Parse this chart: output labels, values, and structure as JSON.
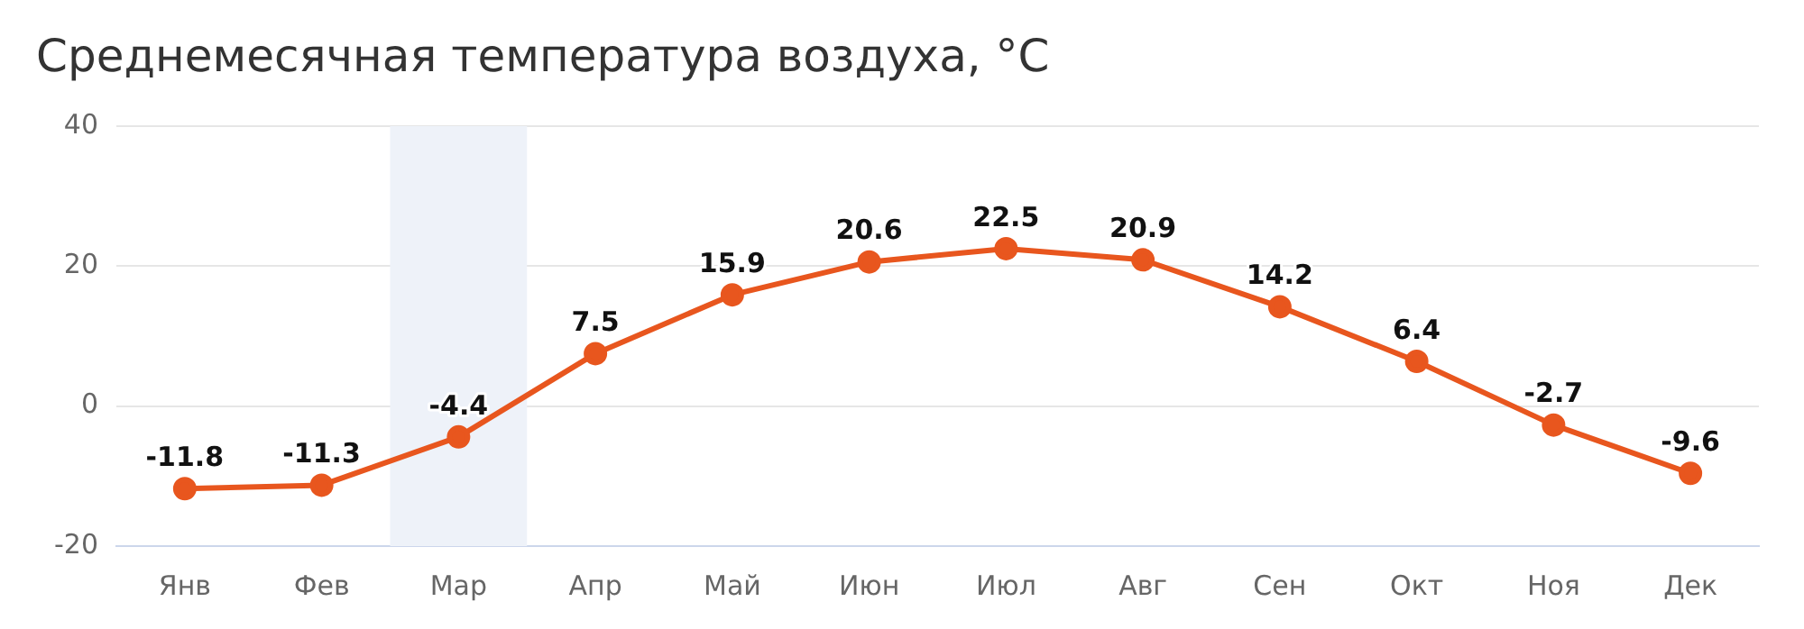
{
  "chart_data": {
    "type": "line",
    "title": "Среднемесячная температура воздуха, °C",
    "categories": [
      "Янв",
      "Фев",
      "Мар",
      "Апр",
      "Май",
      "Июн",
      "Июл",
      "Авг",
      "Сен",
      "Окт",
      "Ноя",
      "Дек"
    ],
    "series": [
      {
        "color": "#e8561e",
        "values": [
          -11.8,
          -11.3,
          -4.4,
          7.5,
          15.9,
          20.6,
          22.5,
          20.9,
          14.2,
          6.4,
          -2.7,
          -9.6
        ]
      }
    ],
    "ylim": [
      -20,
      40
    ],
    "yticks": [
      -20,
      0,
      20,
      40
    ],
    "grid": "y",
    "marker": "circle",
    "line_style": "solid",
    "data_labels": true,
    "legend": false,
    "bands": [
      {
        "axis": "x",
        "from": "Мар",
        "to": "Мар",
        "color": "#eef2f9"
      }
    ]
  }
}
